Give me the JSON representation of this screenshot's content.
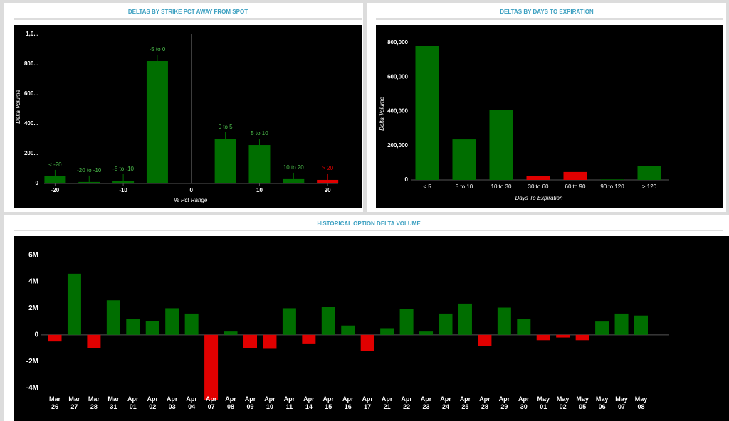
{
  "chart_data": [
    {
      "type": "bar",
      "title": "DELTAS BY STRIKE PCT AWAY FROM SPOT",
      "ylabel": "Delta Volume",
      "xlabel": "% Pct Range",
      "categories": [
        "< -20",
        "-20 to -10",
        "-5 to -10",
        "-5 to 0",
        "0 to 5",
        "5 to 10",
        "10 to 20",
        "> 20"
      ],
      "x": [
        -20,
        -15,
        -10,
        -5,
        5,
        10,
        15,
        20
      ],
      "values": [
        48000,
        10000,
        19000,
        819000,
        300000,
        257000,
        29000,
        24000
      ],
      "colors": [
        "#006e00",
        "#006e00",
        "#006e00",
        "#006e00",
        "#006e00",
        "#006e00",
        "#006e00",
        "#e00000"
      ],
      "xlim": [
        -26,
        25
      ],
      "xticks": [
        -20,
        -10,
        0,
        10,
        20
      ],
      "ylim": [
        0,
        1000000
      ],
      "yticks": [
        0,
        {
          "value": 200000,
          "label": "200..."
        },
        {
          "value": 400000,
          "label": "400..."
        },
        {
          "value": 600000,
          "label": "600..."
        },
        {
          "value": 800000,
          "label": "800..."
        },
        {
          "value": 1000000,
          "label": "1,0..."
        }
      ]
    },
    {
      "type": "bar",
      "title": "DELTAS BY DAYS TO EXPIRATION",
      "ylabel": "Delta Volume",
      "xlabel": "Days To Expiration",
      "categories": [
        "< 5",
        "5 to 10",
        "10 to 30",
        "30 to 60",
        "60 to 90",
        "90 to 120",
        "> 120"
      ],
      "values": [
        783000,
        236000,
        410000,
        21000,
        46000,
        3000,
        79000
      ],
      "colors": [
        "#006e00",
        "#006e00",
        "#006e00",
        "#e00000",
        "#e00000",
        "#006e00",
        "#006e00"
      ],
      "ylim": [
        0,
        850000
      ],
      "yticks": [
        0,
        {
          "value": 200000,
          "label": "200,000"
        },
        {
          "value": 400000,
          "label": "400,000"
        },
        {
          "value": 600000,
          "label": "600,000"
        },
        {
          "value": 800000,
          "label": "800,000"
        }
      ]
    },
    {
      "type": "bar",
      "title": "HISTORICAL OPTION DELTA VOLUME",
      "categories": [
        "Mar 26",
        "Mar 27",
        "Mar 28",
        "Mar 31",
        "Apr 01",
        "Apr 02",
        "Apr 03",
        "Apr 04",
        "Apr 07",
        "Apr 08",
        "Apr 09",
        "Apr 10",
        "Apr 11",
        "Apr 14",
        "Apr 15",
        "Apr 16",
        "Apr 17",
        "Apr 21",
        "Apr 22",
        "Apr 23",
        "Apr 24",
        "Apr 25",
        "Apr 28",
        "Apr 29",
        "Apr 30",
        "May 01",
        "May 02",
        "May 05",
        "May 06",
        "May 07",
        "May 08"
      ],
      "values": [
        -0.5,
        4.6,
        -1.0,
        2.6,
        1.2,
        1.05,
        2.0,
        1.6,
        -4.9,
        0.25,
        -1.0,
        -1.05,
        2.0,
        -0.7,
        2.1,
        0.7,
        -1.2,
        0.5,
        1.95,
        0.25,
        1.6,
        2.35,
        -0.85,
        2.05,
        1.2,
        -0.4,
        -0.2,
        -0.4,
        1.0,
        1.6,
        1.45
      ],
      "color": "#006e00",
      "negative_color": "#e00000",
      "ylim": [
        -5.2,
        7
      ],
      "yticks": [
        {
          "value": -4,
          "label": "-4M"
        },
        {
          "value": -2,
          "label": "-2M"
        },
        0,
        {
          "value": 2,
          "label": "2M"
        },
        {
          "value": 4,
          "label": "4M"
        },
        {
          "value": 6,
          "label": "6M"
        }
      ]
    }
  ]
}
